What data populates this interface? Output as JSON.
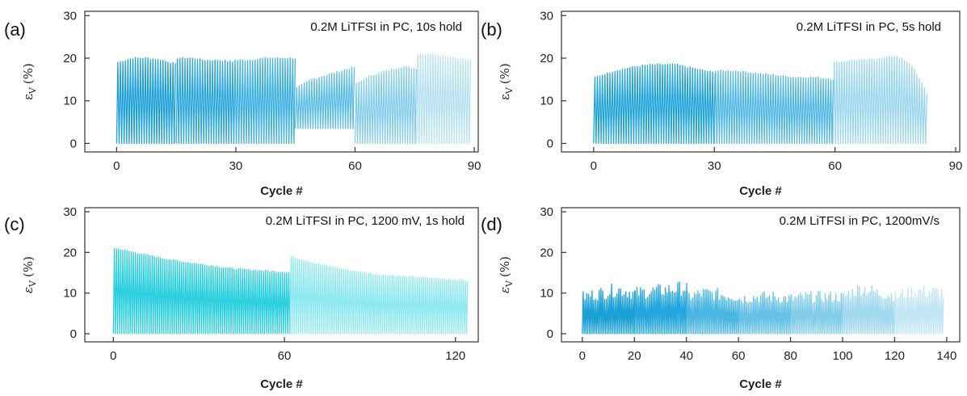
{
  "chart_data": [
    {
      "type": "line",
      "panel_label": "(a)",
      "annotation": "0.2M LiTFSI in PC, 10s hold",
      "xlabel": "Cycle #",
      "ylabel_symbol": "ε",
      "ylabel_sub": "V",
      "ylabel_unit": "(%)",
      "xlim": [
        -8,
        91
      ],
      "ylim": [
        -2,
        31
      ],
      "xticks": [
        0,
        30,
        60,
        90
      ],
      "yticks": [
        0,
        10,
        20,
        30
      ],
      "series": [
        {
          "x_start": 0,
          "x_end": 15,
          "peaks": [
            19,
            20,
            20,
            19.5,
            18.5
          ],
          "base": 0,
          "color": "#1a9fd6"
        },
        {
          "x_start": 15,
          "x_end": 29.5,
          "peaks": [
            20,
            20,
            19.5,
            19.5,
            19
          ],
          "base": 0,
          "color": "#2aa5da"
        },
        {
          "x_start": 29.5,
          "x_end": 45,
          "peaks": [
            19.5,
            19.5,
            20,
            20,
            20
          ],
          "base": 0,
          "color": "#3cb0e0"
        },
        {
          "x_start": 45,
          "x_end": 60,
          "peaks": [
            13,
            15,
            16,
            17,
            18
          ],
          "base": 3.5,
          "color": "#5cbde5"
        },
        {
          "x_start": 60,
          "x_end": 75.5,
          "peaks": [
            14,
            16,
            17,
            18,
            17.5
          ],
          "base": 0,
          "color": "#85cdea"
        },
        {
          "x_start": 75.5,
          "x_end": 89,
          "peaks": [
            21,
            21,
            20.5,
            20,
            19.5
          ],
          "base": 0,
          "color": "#b6e1f1"
        }
      ]
    },
    {
      "type": "line",
      "panel_label": "(b)",
      "annotation": "0.2M LiTFSI in PC, 5s hold",
      "xlabel": "Cycle #",
      "ylabel_symbol": "ε",
      "ylabel_sub": "V",
      "ylabel_unit": "(%)",
      "xlim": [
        -8,
        91
      ],
      "ylim": [
        -2,
        31
      ],
      "xticks": [
        0,
        30,
        60,
        90
      ],
      "yticks": [
        0,
        10,
        20,
        30
      ],
      "series": [
        {
          "x_start": 0,
          "x_end": 30,
          "peaks": [
            15.5,
            17,
            18,
            18.5,
            18.5,
            17.5,
            16.5
          ],
          "base": 0,
          "color": "#1fa3d8"
        },
        {
          "x_start": 30,
          "x_end": 59.5,
          "peaks": [
            17,
            17,
            16.5,
            16,
            15.5,
            15.5,
            15
          ],
          "base": 0,
          "color": "#52b8e3"
        },
        {
          "x_start": 59.5,
          "x_end": 83,
          "peaks": [
            19,
            19.5,
            19.5,
            20,
            20.5,
            18,
            11
          ],
          "base": 0,
          "color": "#9bd6ee"
        }
      ]
    },
    {
      "type": "line",
      "panel_label": "(c)",
      "annotation": "0.2M LiTFSI in PC, 1200 mV, 1s hold",
      "xlabel": "Cycle #",
      "ylabel_symbol": "ε",
      "ylabel_sub": "V",
      "ylabel_unit": "(%)",
      "xlim": [
        -10,
        128
      ],
      "ylim": [
        -2,
        31
      ],
      "xticks": [
        0,
        60,
        120
      ],
      "yticks": [
        0,
        10,
        20,
        30
      ],
      "series": [
        {
          "x_start": 0,
          "x_end": 62,
          "peaks": [
            21,
            19.5,
            18,
            17,
            16,
            15.5,
            15
          ],
          "base": 0,
          "color": "#2ccfdd"
        },
        {
          "x_start": 62,
          "x_end": 124,
          "peaks": [
            19,
            17,
            15.5,
            14.5,
            14,
            13.5,
            13
          ],
          "base": 0,
          "color": "#8ee8ef"
        }
      ]
    },
    {
      "type": "line",
      "panel_label": "(d)",
      "annotation": "0.2M LiTFSI in PC, 1200mV/s",
      "xlabel": "Cycle #",
      "ylabel_symbol": "ε",
      "ylabel_sub": "V",
      "ylabel_unit": "(%)",
      "xlim": [
        -8,
        145
      ],
      "ylim": [
        -2,
        31
      ],
      "xticks": [
        0,
        20,
        40,
        60,
        80,
        100,
        120,
        140
      ],
      "yticks": [
        0,
        10,
        20,
        30
      ],
      "series": [
        {
          "x_start": 0,
          "x_end": 20,
          "peaks": [
            10,
            11,
            12,
            11
          ],
          "base": 0,
          "color": "#1a9fd6"
        },
        {
          "x_start": 20,
          "x_end": 40,
          "peaks": [
            11,
            11.5,
            12,
            12.5
          ],
          "base": 0,
          "color": "#25a6dc"
        },
        {
          "x_start": 40,
          "x_end": 60,
          "peaks": [
            10,
            11,
            10.5,
            10
          ],
          "base": 0,
          "color": "#4bb6e2"
        },
        {
          "x_start": 60,
          "x_end": 80,
          "peaks": [
            9.5,
            10,
            10,
            9.5
          ],
          "base": 0,
          "color": "#66c1e6"
        },
        {
          "x_start": 80,
          "x_end": 100,
          "peaks": [
            9.5,
            10,
            10,
            10
          ],
          "base": 0,
          "color": "#84cdea"
        },
        {
          "x_start": 100,
          "x_end": 120,
          "peaks": [
            10,
            12.5,
            11,
            10.5
          ],
          "base": 0,
          "color": "#a3d9ef"
        },
        {
          "x_start": 120,
          "x_end": 139,
          "peaks": [
            10,
            11.5,
            11.5,
            11
          ],
          "base": 0,
          "color": "#c3e6f4"
        }
      ]
    }
  ]
}
